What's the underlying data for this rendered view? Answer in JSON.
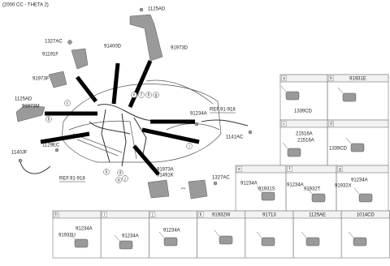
{
  "header": {
    "title": "(2000 CC - THETA 2)"
  },
  "labels": [
    "1125AD",
    "1327AC",
    "91400D",
    "91191F",
    "91973D",
    "91973F",
    "1125AD",
    "91973M",
    "91234A",
    "REF.91-918",
    "1141AC",
    "1129EC",
    "1140JF",
    "REF.91-918",
    "91973A",
    "91491K",
    "1327AC"
  ],
  "callouts": [
    "e",
    "f",
    "h",
    "g",
    "c",
    "b",
    "i",
    "k",
    "d",
    "a",
    "j"
  ],
  "panels": [
    {
      "letter": "a",
      "parts": [
        "1339CD"
      ]
    },
    {
      "letter": "b",
      "code": "91931E"
    },
    {
      "letter": "c",
      "parts": [
        "21516A",
        "21516A"
      ]
    },
    {
      "letter": "d",
      "parts": [
        "1339CD"
      ]
    },
    {
      "letter": "e",
      "parts": [
        "91234A",
        "91931S"
      ]
    },
    {
      "letter": "f",
      "parts": [
        "91234A",
        "91932T"
      ]
    },
    {
      "letter": "g",
      "parts": [
        "91234A",
        "91932X"
      ]
    },
    {
      "letter": "h",
      "parts": [
        "91234A",
        "91932U"
      ]
    },
    {
      "letter": "i",
      "parts": [
        "91234A"
      ]
    },
    {
      "letter": "j",
      "parts": [
        "91234A"
      ]
    },
    {
      "letter": "k",
      "code": "91932W"
    },
    {
      "code": "91713"
    },
    {
      "code": "1125AE"
    },
    {
      "code": "1014CD"
    }
  ]
}
